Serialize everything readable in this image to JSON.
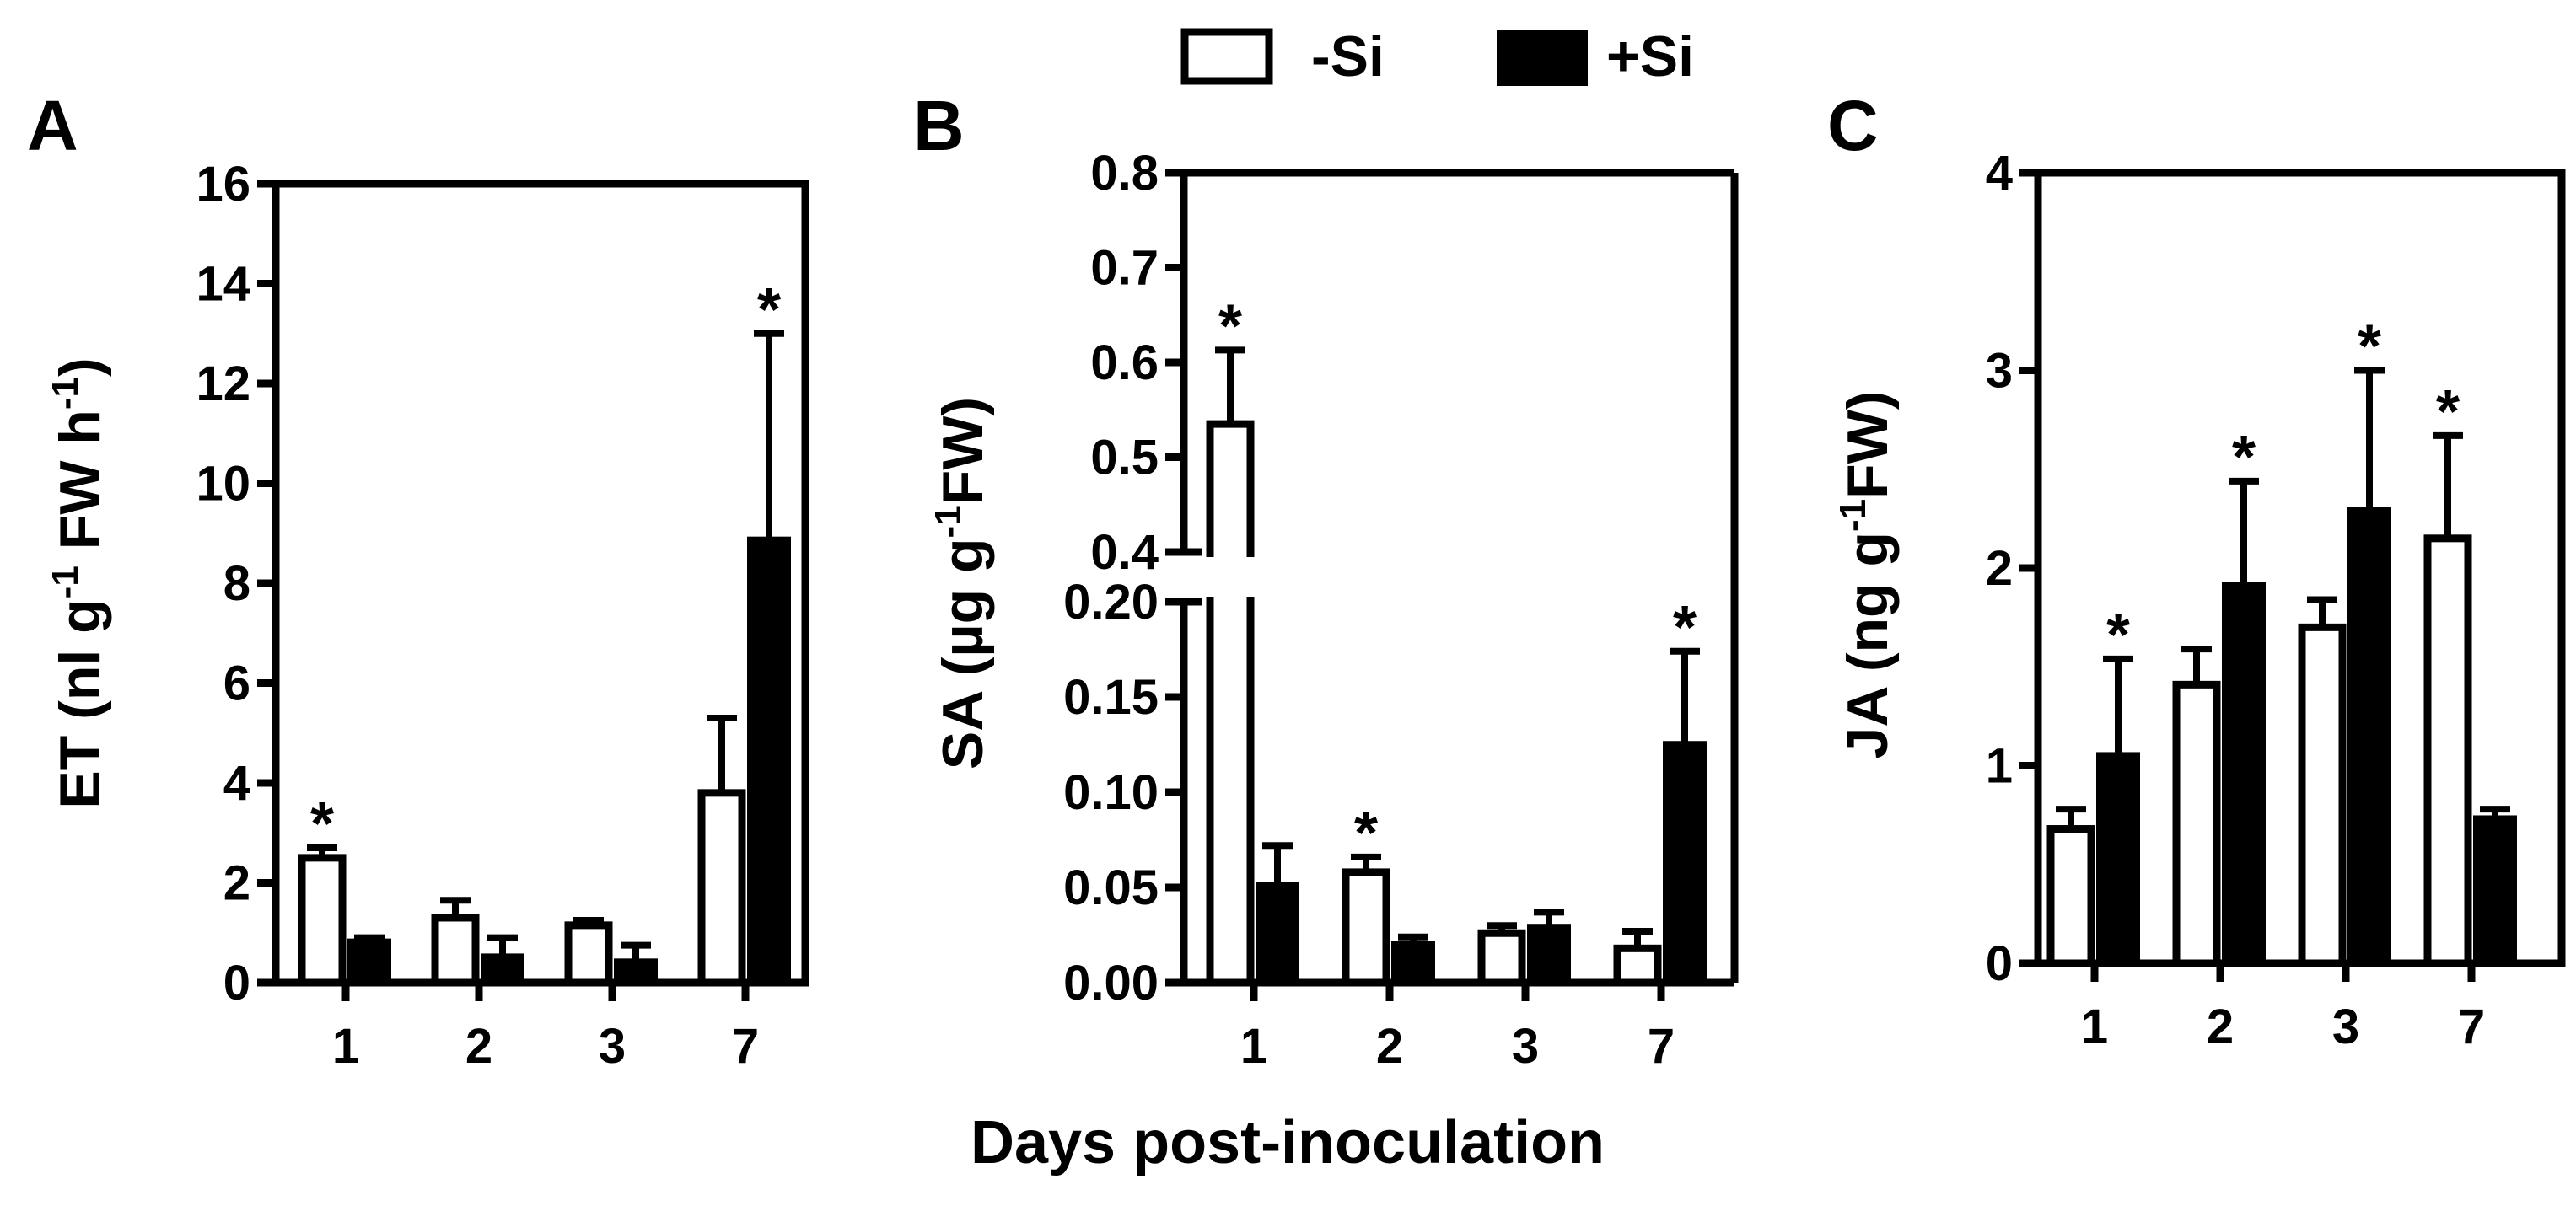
{
  "figure": {
    "xlabel": "Days post-inoculation",
    "legend": [
      {
        "label": "-Si",
        "fill": "#ffffff",
        "stroke": "#000000"
      },
      {
        "label": "+Si",
        "fill": "#000000",
        "stroke": "#000000"
      }
    ]
  },
  "chart_data": [
    {
      "type": "bar",
      "panel": "A",
      "ylabel_main": "ET",
      "ylabel_unit": [
        "(nl g",
        "-1",
        " FW h",
        "-1",
        ")"
      ],
      "categories": [
        "1",
        "2",
        "3",
        "7"
      ],
      "ylim": [
        0,
        16
      ],
      "yticks": [
        0,
        2,
        4,
        6,
        8,
        10,
        12,
        14,
        16
      ],
      "yticklabels": [
        "0",
        "2",
        "4",
        "6",
        "8",
        "10",
        "12",
        "14",
        "16"
      ],
      "series": [
        {
          "name": "-Si",
          "values": [
            2.5,
            1.3,
            1.15,
            3.8
          ],
          "errors": [
            0.2,
            0.35,
            0.1,
            1.5
          ]
        },
        {
          "name": "+Si",
          "values": [
            0.85,
            0.55,
            0.45,
            8.9
          ],
          "errors": [
            0.05,
            0.35,
            0.3,
            4.1
          ]
        }
      ],
      "annotations": [
        {
          "category": "1",
          "series": "-Si",
          "text": "*"
        },
        {
          "category": "7",
          "series": "+Si",
          "text": "*"
        }
      ]
    },
    {
      "type": "bar",
      "panel": "B",
      "ylabel_main": "SA",
      "ylabel_unit": [
        "(µg g",
        "-1",
        "FW)"
      ],
      "categories": [
        "1",
        "2",
        "3",
        "7"
      ],
      "ylim": [
        0,
        0.8
      ],
      "axis_break": {
        "lower": [
          0,
          0.2
        ],
        "upper": [
          0.4,
          0.8
        ]
      },
      "yticks": [
        0,
        0.05,
        0.1,
        0.15,
        0.2,
        0.4,
        0.5,
        0.6,
        0.7,
        0.8
      ],
      "yticklabels": [
        "0.00",
        "0.05",
        "0.10",
        "0.15",
        "0.20",
        "0.4",
        "0.5",
        "0.6",
        "0.7",
        "0.8"
      ],
      "series": [
        {
          "name": "-Si",
          "values": [
            0.535,
            0.058,
            0.026,
            0.018
          ],
          "errors": [
            0.078,
            0.008,
            0.004,
            0.009
          ]
        },
        {
          "name": "+Si",
          "values": [
            0.052,
            0.021,
            0.03,
            0.126
          ],
          "errors": [
            0.02,
            0.003,
            0.007,
            0.048
          ]
        }
      ],
      "annotations": [
        {
          "category": "1",
          "series": "-Si",
          "text": "*"
        },
        {
          "category": "2",
          "series": "-Si",
          "text": "*"
        },
        {
          "category": "7",
          "series": "+Si",
          "text": "*"
        }
      ]
    },
    {
      "type": "bar",
      "panel": "C",
      "ylabel_main": "JA",
      "ylabel_unit": [
        "(ng g",
        "-1",
        "FW)"
      ],
      "categories": [
        "1",
        "2",
        "3",
        "7"
      ],
      "ylim": [
        0,
        4
      ],
      "yticks": [
        0,
        1,
        2,
        3,
        4
      ],
      "yticklabels": [
        "0",
        "1",
        "2",
        "3",
        "4"
      ],
      "series": [
        {
          "name": "-Si",
          "values": [
            0.68,
            1.41,
            1.7,
            2.15
          ],
          "errors": [
            0.1,
            0.18,
            0.14,
            0.52
          ]
        },
        {
          "name": "+Si",
          "values": [
            1.06,
            1.92,
            2.3,
            0.74
          ],
          "errors": [
            0.48,
            0.52,
            0.7,
            0.04
          ]
        }
      ],
      "annotations": [
        {
          "category": "1",
          "series": "+Si",
          "text": "*"
        },
        {
          "category": "2",
          "series": "+Si",
          "text": "*"
        },
        {
          "category": "3",
          "series": "+Si",
          "text": "*"
        },
        {
          "category": "7",
          "series": "-Si",
          "text": "*"
        }
      ]
    }
  ]
}
